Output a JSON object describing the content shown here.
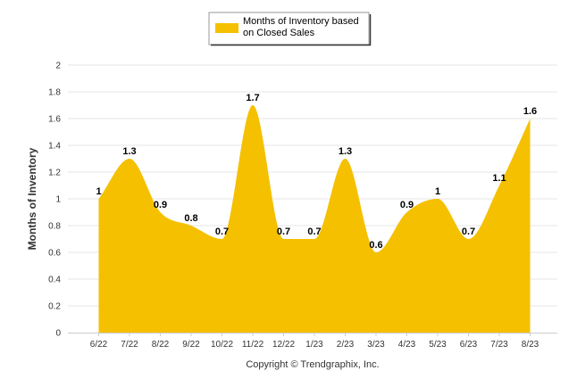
{
  "chart_data": {
    "type": "area",
    "title": "",
    "xlabel": "",
    "ylabel": "Months of Inventory",
    "ylim": [
      0,
      2
    ],
    "yticks": [
      "0",
      "0.2",
      "0.4",
      "0.6",
      "0.8",
      "1",
      "1.2",
      "1.4",
      "1.6",
      "1.8",
      "2"
    ],
    "categories": [
      "6/22",
      "7/22",
      "8/22",
      "9/22",
      "10/22",
      "11/22",
      "12/22",
      "1/23",
      "2/23",
      "3/23",
      "4/23",
      "5/23",
      "6/23",
      "7/23",
      "8/23"
    ],
    "series": [
      {
        "name": "Months of Inventory based on Closed Sales",
        "values": [
          1,
          1.3,
          0.9,
          0.8,
          0.7,
          1.7,
          0.7,
          0.7,
          1.3,
          0.6,
          0.9,
          1,
          0.7,
          1.1,
          1.6
        ],
        "labels": [
          "1",
          "1.3",
          "0.9",
          "0.8",
          "0.7",
          "1.7",
          "0.7",
          "0.7",
          "1.3",
          "0.6",
          "0.9",
          "1",
          "0.7",
          "1.1",
          "1.6"
        ],
        "color": "#f5c000"
      }
    ],
    "legend": {
      "position": "top-center",
      "lines": [
        "Months of Inventory based",
        "on Closed Sales"
      ]
    },
    "grid": "horizontal",
    "gridColor": "#e6e6e6",
    "credit": "Copyright © Trendgraphix, Inc."
  }
}
